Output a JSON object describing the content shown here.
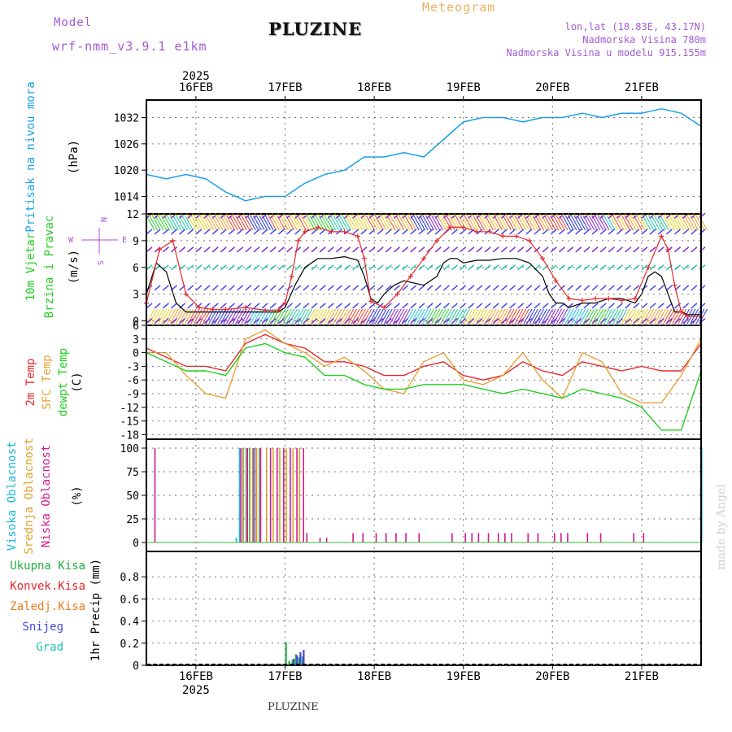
{
  "header": {
    "model_label": "Model",
    "model_name": "wrf-nmm_v3.9.1 e1km",
    "title": "PLUZINE",
    "product": "Meteogram",
    "lonlat": "lon,lat (18.83E, 43.17N)",
    "elevation": "Nadmorska Visina 780m",
    "model_elevation": "Nadmorska Visina u modelu 915.155m",
    "footer_title": "PLUZINE",
    "watermark": "made by Angel"
  },
  "colors": {
    "pressure": "#1aa0ea",
    "temp2m": "#e8262a",
    "sfc_temp": "#e8a238",
    "dewpt": "#1fcf1f",
    "wind_speed": "#000000",
    "gust": "#e8262a",
    "high_cloud": "#19b9d6",
    "mid_cloud": "#e0a22a",
    "low_cloud": "#d21a8c",
    "wind_axis_label": "#b24cd6",
    "header_purple": "#a35ad4",
    "meteogram_orange": "#e8b25a",
    "precip_total": "#1fb040",
    "precip_conv": "#e8262a",
    "precip_frozen": "#f07a1e",
    "snow": "#4646e6",
    "graupel": "#22c4b2"
  },
  "chart_data": [
    {
      "type": "line",
      "name": "sea-level-pressure",
      "ylabel_lines": [
        "Pritisak na nivou mora",
        "(hPa)"
      ],
      "ylim": [
        1010,
        1036
      ],
      "yticks": [
        1014,
        1020,
        1026,
        1032
      ],
      "series": [
        {
          "name": "Pritisak na nivou mora",
          "x": [
            0,
            6,
            12,
            18,
            24,
            30,
            36,
            42,
            48,
            54,
            60,
            66,
            72,
            78,
            84,
            90,
            96,
            102,
            108,
            114,
            120,
            126,
            132,
            138,
            144,
            150,
            156,
            162,
            168
          ],
          "values": [
            1019,
            1018,
            1019,
            1018,
            1015,
            1013,
            1014,
            1014,
            1017,
            1019,
            1020,
            1023,
            1023,
            1024,
            1023,
            1027,
            1031,
            1032,
            1032,
            1031,
            1032,
            1032,
            1033,
            1032,
            1033,
            1033,
            1034,
            1033,
            1030
          ]
        }
      ]
    },
    {
      "type": "line",
      "name": "wind-10m",
      "ylabel_lines": [
        "10m Vjetar",
        "Brzina i Pravac",
        "(m/s)"
      ],
      "direction_axis": {
        "top": "N",
        "west": "W",
        "east": "E",
        "bottom": "S"
      },
      "ylim": [
        -0.5,
        12
      ],
      "yticks": [
        0,
        3,
        6,
        9,
        12
      ],
      "series": [
        {
          "name": "Brzina",
          "x": [
            0,
            3,
            6,
            9,
            12,
            15,
            18,
            24,
            30,
            36,
            40,
            42,
            45,
            48,
            52,
            56,
            60,
            64,
            66,
            68,
            70,
            72,
            75,
            78,
            84,
            88,
            90,
            92,
            94,
            96,
            100,
            104,
            108,
            112,
            116,
            120,
            122,
            124,
            126,
            128,
            132,
            136,
            140,
            144,
            148,
            150,
            152,
            154,
            156,
            158,
            160,
            162,
            164,
            168
          ],
          "values": [
            3,
            6.5,
            5.5,
            2,
            1,
            1,
            1,
            1,
            1,
            1,
            1,
            1.5,
            4,
            6,
            7,
            7,
            7.2,
            6.8,
            5,
            2.5,
            2,
            3,
            4,
            4.5,
            4,
            5,
            6.5,
            7,
            7,
            6.5,
            6.8,
            6.8,
            7,
            7,
            6.5,
            5,
            3,
            2,
            2,
            1.5,
            2,
            2,
            2.5,
            2.5,
            2,
            3,
            5,
            5.5,
            5,
            3,
            1,
            1,
            0.7,
            0.7
          ]
        },
        {
          "name": "Udar",
          "x": [
            0,
            4,
            8,
            12,
            16,
            20,
            24,
            30,
            36,
            40,
            42,
            44,
            46,
            48,
            52,
            56,
            60,
            64,
            66,
            68,
            72,
            76,
            80,
            84,
            88,
            92,
            96,
            100,
            104,
            108,
            112,
            116,
            120,
            124,
            128,
            132,
            136,
            140,
            144,
            148,
            152,
            156,
            158,
            160,
            162,
            164,
            168
          ],
          "values": [
            2,
            8,
            9,
            3,
            1.5,
            1.3,
            1.3,
            1.5,
            1.2,
            1.2,
            2,
            5,
            9,
            10,
            10.5,
            10,
            10,
            9.5,
            7,
            2.2,
            1.5,
            3,
            5,
            7,
            9,
            10.5,
            10.5,
            10,
            10,
            9.5,
            9.5,
            9,
            7,
            4.5,
            2.5,
            2.3,
            2.5,
            2.5,
            2.3,
            2.5,
            6,
            9.5,
            8,
            4,
            1,
            0.5,
            0.5
          ]
        }
      ]
    },
    {
      "type": "line",
      "name": "temperature",
      "ylabel_lines": [
        "2m Temp",
        "SFC Temp",
        "dewpt Temp",
        "(C)"
      ],
      "ylim": [
        -19,
        6
      ],
      "yticks": [
        -18,
        -15,
        -12,
        -9,
        -6,
        -3,
        0,
        3,
        6
      ],
      "series": [
        {
          "name": "2m Temp",
          "x": [
            0,
            6,
            12,
            18,
            24,
            30,
            36,
            42,
            48,
            54,
            60,
            66,
            72,
            78,
            84,
            90,
            96,
            102,
            108,
            114,
            120,
            126,
            132,
            138,
            144,
            150,
            156,
            162,
            168
          ],
          "values": [
            1,
            -1,
            -3,
            -3,
            -4,
            2,
            4,
            2,
            1,
            -2,
            -2,
            -3,
            -5,
            -5,
            -3,
            -2,
            -5,
            -6,
            -5,
            -2,
            -4,
            -5,
            -2,
            -3,
            -4,
            -3,
            -4,
            -4,
            2
          ]
        },
        {
          "name": "SFC Temp",
          "x": [
            0,
            6,
            12,
            18,
            24,
            30,
            36,
            42,
            48,
            54,
            60,
            66,
            72,
            78,
            84,
            90,
            96,
            102,
            108,
            114,
            120,
            126,
            132,
            138,
            144,
            150,
            156,
            162,
            168
          ],
          "values": [
            0,
            0,
            -5,
            -9,
            -10,
            3,
            5,
            2,
            0,
            -3,
            -1,
            -4,
            -8,
            -9,
            -2,
            0,
            -6,
            -7,
            -5,
            0,
            -6,
            -10,
            0,
            -2,
            -9,
            -11,
            -11,
            -5,
            3
          ]
        },
        {
          "name": "dewpt Temp",
          "x": [
            0,
            6,
            12,
            18,
            24,
            30,
            36,
            42,
            48,
            54,
            60,
            66,
            72,
            78,
            84,
            90,
            96,
            102,
            108,
            114,
            120,
            126,
            132,
            138,
            144,
            150,
            156,
            162,
            168
          ],
          "values": [
            0,
            -2,
            -4,
            -4,
            -5,
            1,
            2,
            0,
            -1,
            -5,
            -5,
            -7,
            -8,
            -8,
            -7,
            -7,
            -7,
            -8,
            -9,
            -8,
            -9,
            -10,
            -8,
            -9,
            -10,
            -12,
            -17,
            -17,
            -4
          ]
        }
      ]
    },
    {
      "type": "bar",
      "name": "cloud-cover",
      "ylabel_lines": [
        "Visoka Oblacnost",
        "Srednja Oblacnost",
        "Niska Oblacnost",
        "(%)"
      ],
      "ylim": [
        0,
        100
      ],
      "yticks": [
        0,
        25,
        50,
        75,
        100
      ],
      "series": [
        {
          "name": "Visoka Oblacnost",
          "x": [
            27,
            28,
            29,
            30,
            31,
            32,
            33,
            34,
            168
          ],
          "values": [
            5,
            100,
            100,
            100,
            100,
            100,
            100,
            100,
            100
          ]
        },
        {
          "name": "Srednja Oblacnost",
          "x": [
            29,
            30,
            31,
            32,
            33,
            34,
            36,
            38,
            40,
            42,
            44,
            46
          ],
          "values": [
            100,
            100,
            100,
            100,
            100,
            100,
            100,
            100,
            100,
            100,
            100,
            100
          ]
        },
        {
          "name": "Niska Oblacnost",
          "x": [
            2,
            28,
            30,
            32,
            34,
            37,
            39,
            41,
            43,
            45,
            47,
            48,
            52,
            54,
            62,
            65,
            69,
            72,
            75,
            78,
            82,
            92,
            96,
            98,
            100,
            103,
            106,
            108,
            110,
            115,
            118,
            123,
            125,
            127,
            133,
            137,
            147,
            150
          ],
          "values": [
            100,
            100,
            100,
            100,
            100,
            100,
            100,
            100,
            100,
            100,
            100,
            10,
            5,
            5,
            10,
            10,
            10,
            10,
            10,
            10,
            10,
            10,
            10,
            10,
            10,
            10,
            10,
            10,
            10,
            10,
            10,
            10,
            10,
            10,
            10,
            10,
            10,
            10
          ]
        }
      ]
    },
    {
      "type": "bar",
      "name": "precipitation",
      "ylabel_lines": [
        "1hr Precip (mm)"
      ],
      "legend": [
        "Ukupna Kisa",
        "Konvek.Kisa",
        "Zaledj.Kisa",
        "Snijeg",
        "Grad"
      ],
      "ylim": [
        0,
        1.0
      ],
      "yticks": [
        0,
        0.2,
        0.4,
        0.6,
        0.8
      ],
      "series": [
        {
          "name": "Ukupna Kisa",
          "x": [
            42,
            43,
            44,
            45,
            46,
            47,
            50,
            51
          ],
          "values": [
            0.21,
            0.04,
            0.05,
            0.1,
            0.07,
            0.08,
            0.01,
            0.01
          ]
        },
        {
          "name": "Snijeg",
          "x": [
            44,
            45,
            46,
            47
          ],
          "values": [
            0.06,
            0.09,
            0.12,
            0.14
          ]
        }
      ]
    }
  ],
  "time_axis": {
    "year_top": "2025",
    "year_bottom": "2025",
    "day_labels": [
      "16FEB",
      "17FEB",
      "18FEB",
      "19FEB",
      "20FEB",
      "21FEB"
    ],
    "day_hours": [
      15,
      42,
      69,
      96,
      123,
      150
    ],
    "range_hours": [
      0,
      168
    ]
  }
}
